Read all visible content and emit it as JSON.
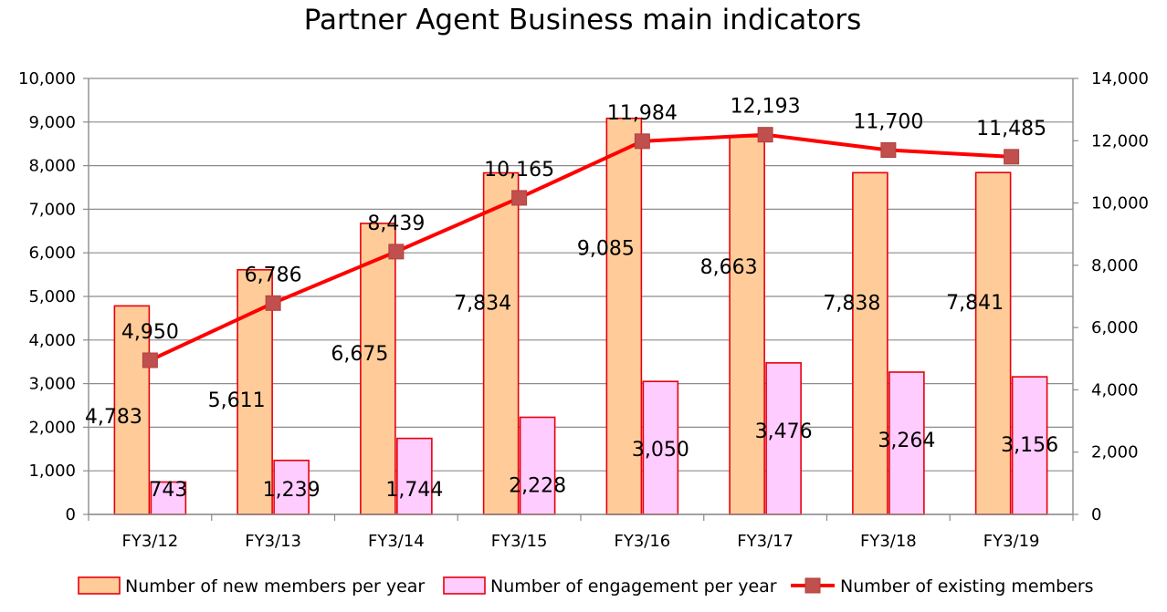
{
  "chart_data": {
    "type": "bar",
    "title": "Partner Agent Business main indicators",
    "categories": [
      "FY3/12",
      "FY3/13",
      "FY3/14",
      "FY3/15",
      "FY3/16",
      "FY3/17",
      "FY3/18",
      "FY3/19"
    ],
    "series": [
      {
        "name": "Number of new members per year",
        "type": "bar",
        "axis": "left",
        "values": [
          4783,
          5611,
          6675,
          7834,
          9085,
          8663,
          7838,
          7841
        ],
        "labels": [
          "4,783",
          "5,611",
          "6,675",
          "7,834",
          "9,085",
          "8,663",
          "7,838",
          "7,841"
        ],
        "fill": "#ffcc99",
        "stroke": "#e8000b"
      },
      {
        "name": "Number of engagement per year",
        "type": "bar",
        "axis": "left",
        "values": [
          743,
          1239,
          1744,
          2228,
          3050,
          3476,
          3264,
          3156
        ],
        "labels": [
          "743",
          "1,239",
          "1,744",
          "2,228",
          "3,050",
          "3,476",
          "3,264",
          "3,156"
        ],
        "fill": "#ffccff",
        "stroke": "#e8000b"
      },
      {
        "name": "Number of existing members",
        "type": "line",
        "axis": "right",
        "values": [
          4950,
          6786,
          8439,
          10165,
          11984,
          12193,
          11700,
          11485
        ],
        "labels": [
          "4,950",
          "6,786",
          "8,439",
          "10,165",
          "11,984",
          "12,193",
          "11,700",
          "11,485"
        ],
        "line_color": "#ff0000",
        "marker_color": "#c0504d"
      }
    ],
    "y_left": {
      "ylim": [
        0,
        10000
      ],
      "ticks": [
        "0",
        "1,000",
        "2,000",
        "3,000",
        "4,000",
        "5,000",
        "6,000",
        "7,000",
        "8,000",
        "9,000",
        "10,000"
      ]
    },
    "y_right": {
      "ylim": [
        0,
        14000
      ],
      "ticks": [
        "0",
        "2,000",
        "4,000",
        "6,000",
        "8,000",
        "10,000",
        "12,000",
        "14,000"
      ]
    },
    "grid": true,
    "legend_position": "bottom"
  }
}
